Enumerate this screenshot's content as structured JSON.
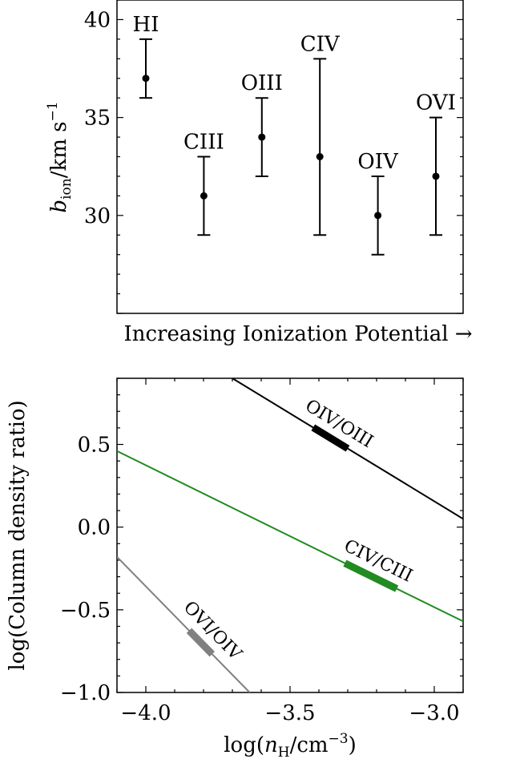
{
  "chart_data": [
    {
      "type": "scatter",
      "subtype": "errorbar",
      "xlabel": "Increasing Ionization Potential →",
      "ylabel": "b_ion/km s⁻¹",
      "ylabel_parts": {
        "sym": "b",
        "sub": "ion",
        "unit": "/km s",
        "sup": "−1"
      },
      "ylim": [
        25,
        41
      ],
      "yticks": [
        "30",
        "35",
        "40"
      ],
      "ytick_values": [
        30,
        35,
        40
      ],
      "categories": [
        "HI",
        "CIII",
        "OIII",
        "CIV",
        "OIV",
        "OVI"
      ],
      "values": [
        37,
        31,
        34,
        33,
        30,
        32
      ],
      "err_low": [
        36,
        29,
        32,
        29,
        28,
        29
      ],
      "err_high": [
        39,
        33,
        36,
        38,
        32,
        35
      ],
      "color": "#000000"
    },
    {
      "type": "line",
      "xlabel": "log(n_H/cm⁻³)",
      "xlabel_parts": {
        "pre": "log(",
        "sym": "n",
        "sub": "H",
        "unit": "/cm",
        "sup": "−3",
        "post": ")"
      },
      "ylabel": "log(Column density ratio)",
      "xlim": [
        -4.1,
        -2.9
      ],
      "ylim": [
        -1.0,
        0.9
      ],
      "xticks": [
        "−4.0",
        "−3.5",
        "−3.0"
      ],
      "xtick_values": [
        -4.0,
        -3.5,
        -3.0
      ],
      "yticks": [
        "−1.0",
        "−0.5",
        "0.0",
        "0.5"
      ],
      "ytick_values": [
        -1.0,
        -0.5,
        0.0,
        0.5
      ],
      "series": [
        {
          "name": "OIV/OIII",
          "x": [
            -3.7,
            -2.9
          ],
          "y": [
            0.9,
            0.05
          ],
          "color": "#000000",
          "highlight": [
            -3.42,
            -3.3
          ]
        },
        {
          "name": "CIV/CIII",
          "x": [
            -4.1,
            -2.9
          ],
          "y": [
            0.46,
            -0.57
          ],
          "color": "#228B22",
          "highlight": [
            -3.31,
            -3.13
          ]
        },
        {
          "name": "OVI/OIV",
          "x": [
            -4.1,
            -3.64
          ],
          "y": [
            -0.18,
            -1.0
          ],
          "color": "#808080",
          "highlight": [
            -3.85,
            -3.77
          ]
        }
      ]
    }
  ]
}
